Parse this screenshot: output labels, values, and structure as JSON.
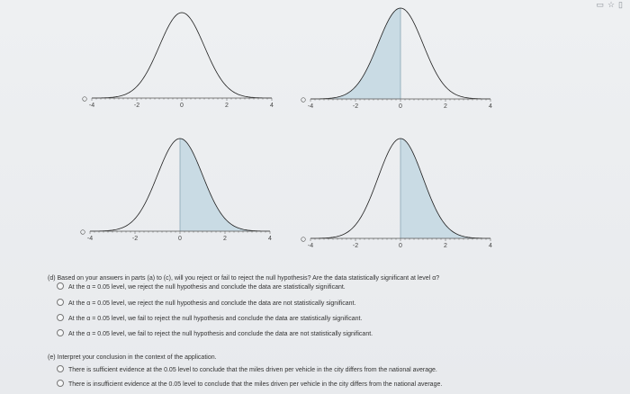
{
  "graphs": [
    {
      "id": "a",
      "shade": "none",
      "ticks": [
        "-4",
        "-2",
        "0",
        "2",
        "4"
      ],
      "origin": "0"
    },
    {
      "id": "b",
      "shade": "left",
      "ticks": [
        "-4",
        "-2",
        "0",
        "2",
        "4"
      ],
      "origin": "0"
    },
    {
      "id": "c",
      "shade": "right",
      "ticks": [
        "-4",
        "-2",
        "0",
        "2",
        "4"
      ],
      "origin": "0"
    },
    {
      "id": "d",
      "shade": "right",
      "ticks": [
        "-4",
        "-2",
        "0",
        "2",
        "4"
      ],
      "origin": "0"
    }
  ],
  "colors": {
    "curve": "#1f1f1f",
    "shade": "#c9dbe4",
    "axis": "#555555"
  },
  "part_d": {
    "question": "(d) Based on your answers in parts (a) to (c), will you reject or fail to reject the null hypothesis? Are the data statistically significant at level α?",
    "options": [
      "At the α = 0.05 level, we reject the null hypothesis and conclude the data are statistically significant.",
      "At the α = 0.05 level, we reject the null hypothesis and conclude the data are not statistically significant.",
      "At the α = 0.05 level, we fail to reject the null hypothesis and conclude the data are statistically significant.",
      "At the α = 0.05 level, we fail to reject the null hypothesis and conclude the data are not statistically significant."
    ]
  },
  "part_e": {
    "question": "(e) Interpret your conclusion in the context of the application.",
    "options": [
      "There is sufficient evidence at the 0.05 level to conclude that the miles driven per vehicle in the city differs from the national average.",
      "There is insufficient evidence at the 0.05 level to conclude that the miles driven per vehicle in the city differs from the national average."
    ]
  },
  "corner_icons": [
    "window-icon",
    "star-icon",
    "panel-icon"
  ]
}
